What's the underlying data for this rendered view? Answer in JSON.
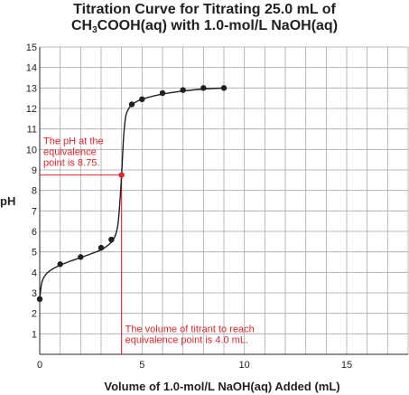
{
  "title": {
    "line1": "Titration Curve for Titrating 25.0 mL of",
    "line2_pre": "CH",
    "line2_sub": "3",
    "line2_post": "COOH(aq) with 1.0-mol/L NaOH(aq)"
  },
  "chart_data": {
    "type": "line",
    "title": "Titration Curve for Titrating 25.0 mL of CH3COOH(aq) with 1.0-mol/L NaOH(aq)",
    "xlabel": "Volume of 1.0-mol/L NaOH(aq) Added (mL)",
    "ylabel": "pH",
    "xlim": [
      0,
      18
    ],
    "ylim": [
      0,
      15
    ],
    "x_ticks": [
      "0",
      "5",
      "10",
      "15"
    ],
    "y_ticks": [
      "1",
      "2",
      "3",
      "4",
      "5",
      "6",
      "7",
      "8",
      "9",
      "10",
      "11",
      "12",
      "13",
      "14",
      "15"
    ],
    "grid": true,
    "curve": [
      [
        0,
        2.7
      ],
      [
        0.1,
        3.5
      ],
      [
        0.3,
        3.9
      ],
      [
        0.6,
        4.15
      ],
      [
        1.0,
        4.35
      ],
      [
        1.5,
        4.55
      ],
      [
        2.0,
        4.72
      ],
      [
        2.5,
        4.9
      ],
      [
        3.0,
        5.1
      ],
      [
        3.3,
        5.3
      ],
      [
        3.6,
        5.6
      ],
      [
        3.8,
        6.2
      ],
      [
        3.9,
        7.2
      ],
      [
        4.0,
        8.75
      ],
      [
        4.1,
        10.6
      ],
      [
        4.2,
        11.6
      ],
      [
        4.35,
        12.0
      ],
      [
        4.6,
        12.25
      ],
      [
        5.0,
        12.45
      ],
      [
        6.0,
        12.7
      ],
      [
        7.0,
        12.85
      ],
      [
        8.0,
        12.95
      ],
      [
        9.1,
        13.0
      ]
    ],
    "points": [
      {
        "x": 0,
        "y": 2.7
      },
      {
        "x": 1.0,
        "y": 4.4
      },
      {
        "x": 2.0,
        "y": 4.75
      },
      {
        "x": 3.0,
        "y": 5.2
      },
      {
        "x": 3.5,
        "y": 5.6
      },
      {
        "x": 4.5,
        "y": 12.2
      },
      {
        "x": 5.0,
        "y": 12.45
      },
      {
        "x": 6.0,
        "y": 12.75
      },
      {
        "x": 7.0,
        "y": 12.9
      },
      {
        "x": 8.0,
        "y": 13.0
      },
      {
        "x": 9.0,
        "y": 13.0
      }
    ],
    "equivalence_point": {
      "x": 4.0,
      "y": 8.75
    },
    "annotations": {
      "ph": [
        "The pH at the",
        "equivalence",
        "point is 8.75."
      ],
      "volume": [
        "The volume of titrant to reach",
        "equivalence point is 4.0 mL."
      ]
    },
    "colors": {
      "curve": "#231f20",
      "grid": "#a7a9ac",
      "annotation": "#e1262d"
    }
  }
}
